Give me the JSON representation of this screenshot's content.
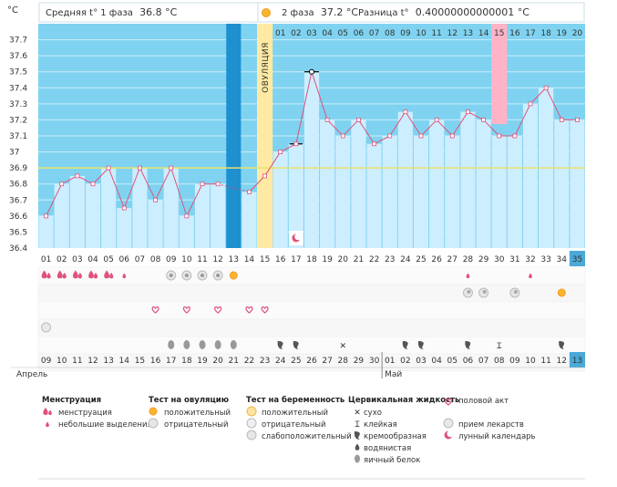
{
  "header": {
    "unit": "°C",
    "phase1_prefix": "Средняя t° 1 фаза",
    "phase1_value": "36.8 °C",
    "phase2_prefix": "2 фаза",
    "phase2_value": "37.2 °C",
    "diff_prefix": "Разница t°",
    "diff_value": "0.40000000000001 °C"
  },
  "ovulation_label": "ОВУЛЯЦИЯ",
  "colors": {
    "sky": "#7fd3f0",
    "bar": "#cdeeff",
    "bar_dark": "#1e8fcf",
    "ovulation": "#ffe9a3",
    "line": "#e0527c",
    "highlight": "#ffb3c6",
    "current": "#4aa9d6",
    "coverline": "#e8e36a"
  },
  "chart_data": {
    "type": "line",
    "ylim": [
      36.4,
      37.8
    ],
    "yticks": [
      "36.4",
      "36.5",
      "36.6",
      "36.7",
      "36.8",
      "36.9",
      "37",
      "37.1",
      "37.2",
      "37.3",
      "37.4",
      "37.5",
      "37.6",
      "37.7"
    ],
    "coverline": 36.9,
    "ovulation_day": 15,
    "days": [
      1,
      2,
      3,
      4,
      5,
      6,
      7,
      8,
      9,
      10,
      11,
      12,
      13,
      14,
      15,
      16,
      17,
      18,
      19,
      20,
      21,
      22,
      23,
      24,
      25,
      26,
      27,
      28,
      29,
      30,
      31,
      32,
      33,
      34,
      35
    ],
    "temps": [
      36.6,
      36.8,
      36.85,
      36.8,
      36.9,
      36.65,
      36.9,
      36.7,
      36.9,
      36.6,
      36.8,
      36.8,
      null,
      36.75,
      36.85,
      37.0,
      37.05,
      37.5,
      37.2,
      37.1,
      37.2,
      37.05,
      37.1,
      37.25,
      37.1,
      37.2,
      37.1,
      37.25,
      37.2,
      37.1,
      37.1,
      37.3,
      37.4,
      37.2,
      37.2
    ],
    "bar_values": [
      36.6,
      36.8,
      36.85,
      36.8,
      36.9,
      36.65,
      36.9,
      36.7,
      36.9,
      36.6,
      36.8,
      36.8,
      null,
      36.75,
      36.85,
      37.0,
      37.05,
      37.5,
      37.2,
      37.1,
      37.2,
      37.05,
      37.1,
      37.25,
      37.1,
      37.2,
      37.1,
      37.25,
      37.2,
      37.1,
      37.1,
      37.3,
      37.4,
      37.2,
      37.2
    ],
    "marker_types": [
      "sq",
      "sq",
      "sq",
      "sq",
      "sq",
      "sq",
      "sq",
      "sq",
      "sq",
      "sq",
      "sq",
      "sq",
      null,
      "sq",
      "sq",
      "sq",
      "bar",
      "ring",
      "sq",
      "sq",
      "sq",
      "sq",
      "sq",
      "sq",
      "sq",
      "sq",
      "sq",
      "sq",
      "sq",
      "sq",
      "sq",
      "sq",
      "sq",
      "sq",
      "sq"
    ],
    "dashed_from_day": 12,
    "dashed_to_day": 15,
    "phase2_top_labels": [
      "01",
      "02",
      "03",
      "04",
      "05",
      "06",
      "07",
      "08",
      "09",
      "10",
      "11",
      "12",
      "13",
      "14",
      "15",
      "16",
      "17",
      "18",
      "19",
      "20"
    ],
    "phase2_highlight": "15",
    "cycle_day_labels": [
      "01",
      "02",
      "03",
      "04",
      "05",
      "06",
      "07",
      "08",
      "09",
      "10",
      "11",
      "12",
      "13",
      "14",
      "15",
      "16",
      "17",
      "18",
      "19",
      "20",
      "21",
      "22",
      "23",
      "24",
      "25",
      "26",
      "27",
      "28",
      "29",
      "30",
      "31",
      "32",
      "33",
      "34",
      "35"
    ],
    "current_day": "35",
    "date_labels": [
      "09",
      "10",
      "11",
      "12",
      "13",
      "14",
      "15",
      "16",
      "17",
      "18",
      "19",
      "20",
      "21",
      "22",
      "23",
      "24",
      "25",
      "26",
      "27",
      "28",
      "29",
      "30",
      "01",
      "02",
      "03",
      "04",
      "05",
      "06",
      "07",
      "08",
      "09",
      "10",
      "11",
      "12",
      "13"
    ],
    "date_red": [
      false,
      false,
      false,
      false,
      true,
      true,
      false,
      false,
      false,
      false,
      false,
      true,
      true,
      false,
      false,
      false,
      false,
      true,
      false,
      true,
      false,
      false,
      false,
      false,
      false,
      true,
      true,
      false,
      false,
      false,
      false,
      false,
      true,
      true,
      false
    ],
    "month_labels": [
      "Апрель",
      "Май"
    ],
    "moon_day": 17
  },
  "symptoms": {
    "menstruation": [
      "heavy",
      "heavy",
      "heavy",
      "heavy",
      "heavy",
      "light",
      null,
      null,
      null,
      null,
      null,
      null,
      null,
      null,
      null,
      null,
      null,
      null,
      null,
      null,
      null,
      null,
      null,
      null,
      null,
      null,
      null,
      "light",
      null,
      null,
      null,
      "light",
      null,
      null,
      null
    ],
    "ovulation_test": [
      null,
      null,
      null,
      null,
      null,
      null,
      null,
      null,
      "neg",
      "neg",
      "neg",
      "neg",
      "pos",
      null,
      null,
      null,
      null,
      null,
      null,
      null,
      null,
      null,
      null,
      null,
      null,
      null,
      null,
      null,
      null,
      null,
      null,
      null,
      null,
      null,
      null
    ],
    "pregnancy_test": [
      null,
      null,
      null,
      null,
      null,
      null,
      null,
      null,
      null,
      null,
      null,
      null,
      null,
      null,
      null,
      null,
      null,
      null,
      null,
      null,
      null,
      null,
      null,
      null,
      null,
      null,
      null,
      "weak",
      "weak",
      null,
      "weak",
      null,
      null,
      "pos",
      null
    ],
    "sex": [
      null,
      null,
      null,
      null,
      null,
      null,
      null,
      "heart",
      null,
      "heart",
      null,
      "heart",
      null,
      "heart",
      "heart",
      null,
      null,
      null,
      null,
      null,
      null,
      null,
      null,
      null,
      null,
      null,
      null,
      null,
      null,
      null,
      null,
      null,
      null,
      null,
      null
    ],
    "medicine": [
      "pill",
      null,
      null,
      null,
      null,
      null,
      null,
      null,
      null,
      null,
      null,
      null,
      null,
      null,
      null,
      null,
      null,
      null,
      null,
      null,
      null,
      null,
      null,
      null,
      null,
      null,
      null,
      null,
      null,
      null,
      null,
      null,
      null,
      null,
      null
    ],
    "mucus": [
      null,
      null,
      null,
      null,
      null,
      null,
      null,
      null,
      "egg",
      "egg",
      "egg",
      "egg",
      "egg",
      null,
      null,
      "creamy",
      "creamy",
      null,
      null,
      "dry",
      null,
      null,
      null,
      "creamy",
      "creamy",
      null,
      null,
      "creamy",
      null,
      "sticky",
      null,
      null,
      null,
      "creamy",
      null
    ]
  },
  "legend": {
    "menstruation": {
      "title": "Менструация",
      "items": [
        "менструация",
        "небольшие выделения"
      ]
    },
    "ovulation_test": {
      "title": "Тест на овуляцию",
      "items": [
        "положительный",
        "отрицательный"
      ]
    },
    "pregnancy_test": {
      "title": "Тест на беременность",
      "items": [
        "положительный",
        "отрицательный",
        "слабоположительный"
      ]
    },
    "cervical": {
      "title": "Цервикальная жидкость",
      "items": [
        "сухо",
        "клейкая",
        "кремообразная",
        "водянистая",
        "яичный белок"
      ]
    },
    "other": [
      "половой акт",
      "прием лекарств",
      "лунный календарь"
    ]
  }
}
